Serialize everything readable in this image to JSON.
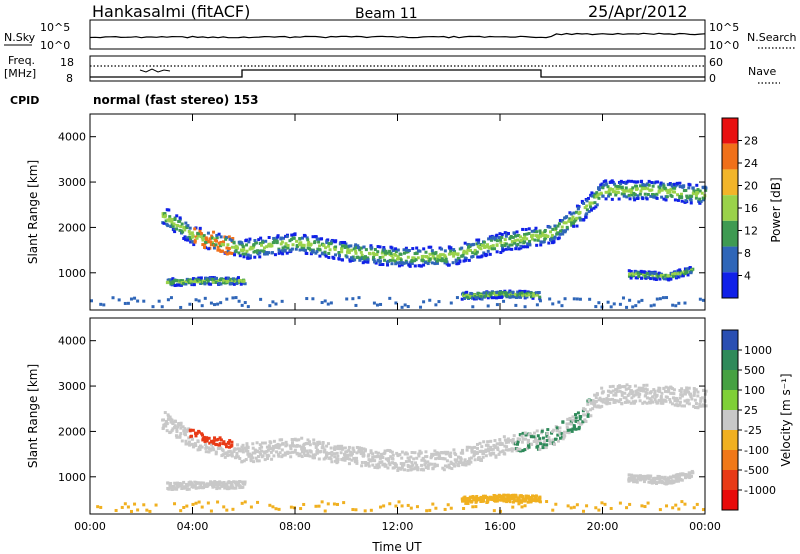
{
  "header": {
    "station": "Hankasalmi (fitACF)",
    "beam": "Beam 11",
    "date": "25/Apr/2012"
  },
  "top_panels": {
    "nsky_label": "N.Sky",
    "nsky_ticks": [
      "10^5",
      "10^0"
    ],
    "nsearch_label": "N.Search",
    "nsearch_ticks": [
      "10^5",
      "10^0"
    ],
    "freq_label_1": "Freq.",
    "freq_label_2": "[MHz]",
    "freq_ticks": [
      "18",
      "8"
    ],
    "nave_label": "Nave",
    "nave_ticks": [
      "60",
      "0"
    ],
    "cpid_label": "CPID",
    "cpid_text": "normal (fast stereo) 153"
  },
  "colorbars": {
    "power": {
      "label": "Power [dB]",
      "ticks": [
        "28",
        "24",
        "20",
        "16",
        "12",
        "8",
        "4"
      ],
      "colors": [
        "#e81010",
        "#f0701a",
        "#f2b52a",
        "#9ad24a",
        "#3e9a52",
        "#2f66b8",
        "#1020e8"
      ]
    },
    "velocity": {
      "label": "Velocity [m s⁻¹]",
      "ticks": [
        "1000",
        "500",
        "100",
        "25",
        "-25",
        "-100",
        "-500",
        "-1000"
      ],
      "colors": [
        "#2a4fb2",
        "#2f8a5a",
        "#46a142",
        "#7fcf37",
        "#c8c8c8",
        "#f0b020",
        "#f07818",
        "#e83a16",
        "#e80a0a"
      ]
    }
  },
  "chart_data": [
    {
      "type": "heatmap",
      "title": "Power",
      "ylabel": "Slant Range [km]",
      "y_ticks": [
        "4000",
        "3000",
        "2000",
        "1000"
      ],
      "ylim": [
        180,
        4500
      ],
      "x_ticks": [
        "00:00",
        "04:00",
        "08:00",
        "12:00",
        "16:00",
        "20:00",
        "00:00"
      ],
      "xlim_hours": [
        0,
        24
      ],
      "scatter_bands": [
        {
          "t": [
            2.8,
            4.0,
            5.0,
            6.0,
            8.0,
            10.0,
            12.0,
            14.0,
            16.0,
            17.0,
            18.0,
            19.0,
            20.0,
            22.0,
            24.0
          ],
          "range_km": [
            2300,
            1850,
            1700,
            1550,
            1700,
            1500,
            1380,
            1400,
            1700,
            1800,
            1900,
            2300,
            2850,
            2850,
            2750
          ]
        },
        {
          "t": [
            3.0,
            4.5,
            6.0
          ],
          "range_km": [
            820,
            850,
            850
          ]
        },
        {
          "t": [
            14.5,
            16.0,
            17.5
          ],
          "range_km": [
            520,
            560,
            540
          ]
        },
        {
          "t": [
            21.0,
            22.5,
            23.5
          ],
          "range_km": [
            1000,
            950,
            1100
          ]
        }
      ]
    },
    {
      "type": "heatmap",
      "title": "Velocity",
      "ylabel": "Slant Range [km]",
      "y_ticks": [
        "4000",
        "3000",
        "2000",
        "1000"
      ],
      "ylim": [
        180,
        4500
      ],
      "x_ticks": [
        "00:00",
        "04:00",
        "08:00",
        "12:00",
        "16:00",
        "20:00",
        "00:00"
      ],
      "xlim_hours": [
        0,
        24
      ],
      "xlabel": "Time UT"
    }
  ]
}
